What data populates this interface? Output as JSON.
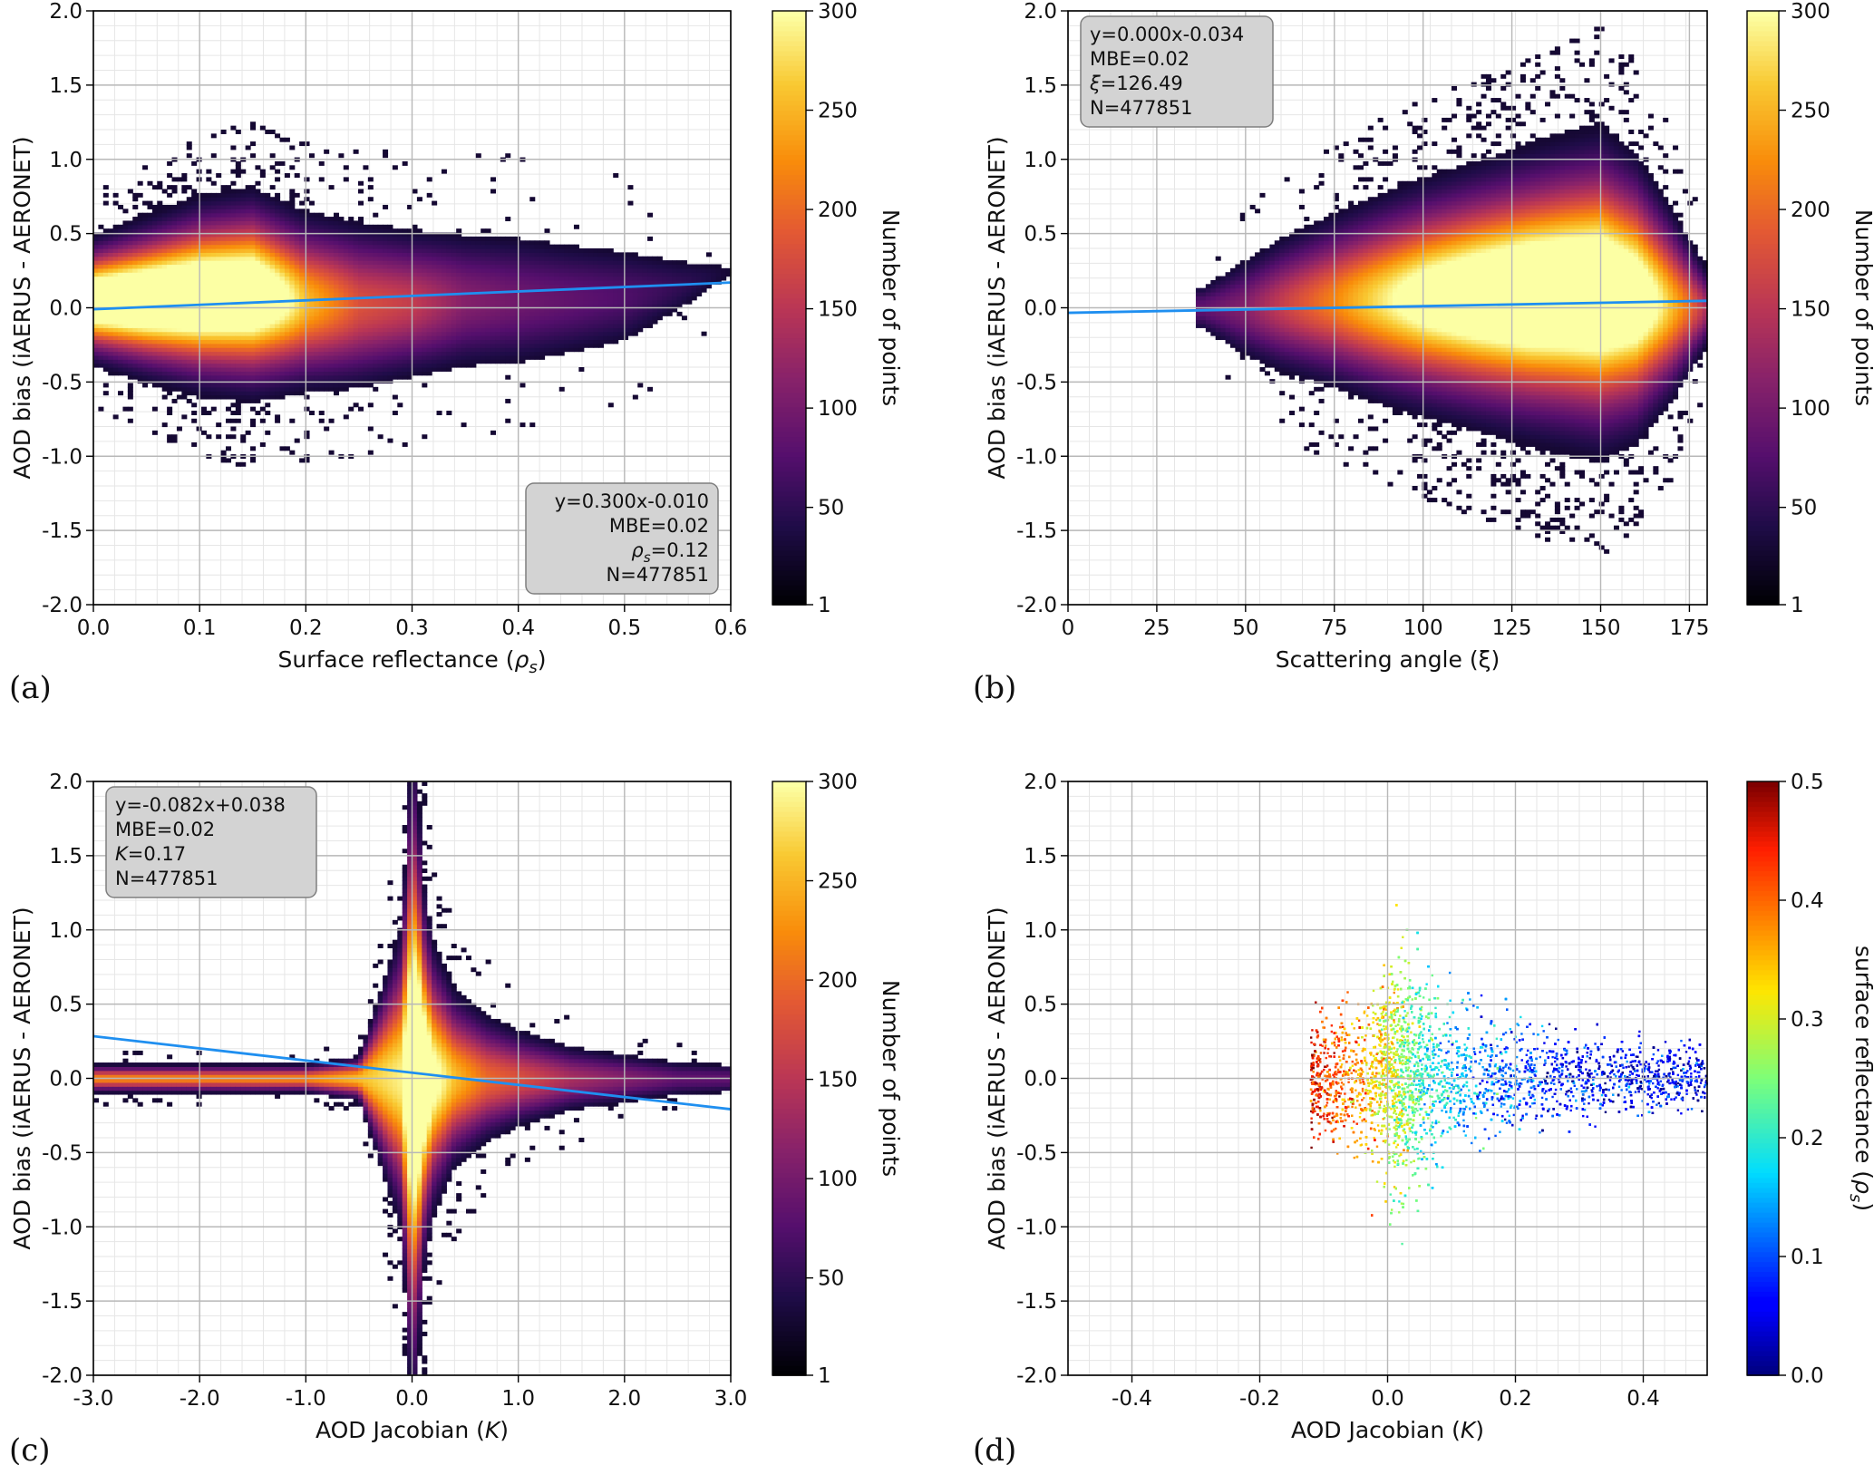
{
  "colors": {
    "fit_line": "#1f8ff0",
    "grid": "#b8b8b8",
    "info_box_fill": "#d3d3d3",
    "info_box_stroke": "#7f7f7f",
    "inferno_low": "#000004",
    "inferno_high": "#fcffa4",
    "jet_low": "#00007f",
    "jet_high": "#7f0000"
  },
  "chart_data": [
    {
      "id": "a",
      "panel_label": "(a)",
      "type": "heatmap",
      "xlabel": "Surface reflectance (ρs)",
      "ylabel": "AOD bias (iAERUS - AERONET)",
      "xlim": [
        0.0,
        0.6
      ],
      "ylim": [
        -2.0,
        2.0
      ],
      "xticks": [
        "0.0",
        "0.1",
        "0.2",
        "0.3",
        "0.4",
        "0.5",
        "0.6"
      ],
      "yticks": [
        "2.0",
        "1.5",
        "1.0",
        "0.5",
        "0.0",
        "-0.5",
        "-1.0",
        "-1.5",
        "-2.0"
      ],
      "grid": true,
      "colormap": "inferno",
      "colorbar": {
        "label": "Number of points",
        "min": 1,
        "max": 300,
        "ticks": [
          "300",
          "250",
          "200",
          "150",
          "100",
          "50",
          "1"
        ]
      },
      "fit": {
        "slope": 0.3,
        "intercept": -0.01
      },
      "info_box": {
        "position": "bottom-right",
        "lines": [
          "y=0.300x-0.010",
          "MBE=0.02",
          "ρs=0.12",
          "N=477851"
        ]
      },
      "density_profile": {
        "x": [
          0.0,
          0.05,
          0.1,
          0.15,
          0.2,
          0.25,
          0.3,
          0.35,
          0.4,
          0.45,
          0.5,
          0.55,
          0.6
        ],
        "center": [
          0.05,
          0.06,
          0.08,
          0.09,
          0.04,
          0.02,
          0.03,
          0.05,
          0.05,
          0.06,
          0.08,
          0.15,
          0.25
        ],
        "spread": [
          0.16,
          0.2,
          0.24,
          0.26,
          0.24,
          0.24,
          0.22,
          0.22,
          0.22,
          0.2,
          0.18,
          0.12,
          0.06
        ],
        "peak": [
          0.95,
          1.0,
          1.0,
          0.95,
          0.5,
          0.3,
          0.25,
          0.15,
          0.12,
          0.1,
          0.08,
          0.05,
          0.02
        ]
      }
    },
    {
      "id": "b",
      "panel_label": "(b)",
      "type": "heatmap",
      "xlabel": "Scattering angle (ξ)",
      "ylabel": "AOD bias (iAERUS - AERONET)",
      "xlim": [
        0,
        180
      ],
      "ylim": [
        -2.0,
        2.0
      ],
      "xticks": [
        "0",
        "25",
        "50",
        "75",
        "100",
        "125",
        "150",
        "175"
      ],
      "yticks": [
        "2.0",
        "1.5",
        "1.0",
        "0.5",
        "0.0",
        "-0.5",
        "-1.0",
        "-1.5",
        "-2.0"
      ],
      "grid": true,
      "colormap": "inferno",
      "colorbar": {
        "label": "Number of points",
        "min": 1,
        "max": 300,
        "ticks": [
          "300",
          "250",
          "200",
          "150",
          "100",
          "50",
          "1"
        ]
      },
      "fit": {
        "slope": 0.0,
        "intercept": -0.034,
        "display_slope": 0.00045
      },
      "info_box": {
        "position": "top-left",
        "lines": [
          "y=0.000x-0.034",
          "MBE=0.02",
          "ξ=126.49",
          "N=477851"
        ]
      },
      "density_profile": {
        "x": [
          38,
          50,
          60,
          75,
          90,
          100,
          115,
          130,
          140,
          150,
          160,
          170,
          180
        ],
        "center": [
          0.0,
          0.0,
          0.02,
          0.05,
          0.06,
          0.07,
          0.08,
          0.09,
          0.1,
          0.1,
          0.06,
          0.02,
          0.0
        ],
        "spread": [
          0.08,
          0.16,
          0.2,
          0.24,
          0.28,
          0.3,
          0.33,
          0.36,
          0.38,
          0.4,
          0.36,
          0.26,
          0.12
        ],
        "peak": [
          0.1,
          0.15,
          0.25,
          0.4,
          0.6,
          0.75,
          0.9,
          1.0,
          1.0,
          1.0,
          0.85,
          0.5,
          0.2
        ]
      }
    },
    {
      "id": "c",
      "panel_label": "(c)",
      "type": "heatmap",
      "xlabel": "AOD Jacobian (K)",
      "ylabel": "AOD bias (iAERUS - AERONET)",
      "xlim": [
        -3.0,
        3.0
      ],
      "ylim": [
        -2.0,
        2.0
      ],
      "xticks": [
        "-3.0",
        "-2.0",
        "-1.0",
        "0.0",
        "1.0",
        "2.0",
        "3.0"
      ],
      "yticks": [
        "2.0",
        "1.5",
        "1.0",
        "0.5",
        "0.0",
        "-0.5",
        "-1.0",
        "-1.5",
        "-2.0"
      ],
      "grid": true,
      "colormap": "inferno",
      "colorbar": {
        "label": "Number of points",
        "min": 1,
        "max": 300,
        "ticks": [
          "300",
          "250",
          "200",
          "150",
          "100",
          "50",
          "1"
        ]
      },
      "fit": {
        "slope": -0.082,
        "intercept": 0.038
      },
      "info_box": {
        "position": "top-left",
        "lines": [
          "y=-0.082x+0.038",
          "MBE=0.02",
          "K=0.17",
          "N=477851"
        ]
      },
      "density_profile": {
        "x": [
          -3.0,
          -2.0,
          -1.0,
          -0.5,
          -0.1,
          0.0,
          0.05,
          0.1,
          0.2,
          0.4,
          0.7,
          1.0,
          1.5,
          2.0,
          2.5,
          3.0
        ],
        "center": [
          0,
          0,
          0,
          0,
          0,
          0,
          0,
          0,
          0,
          0,
          0,
          0,
          0,
          0,
          0,
          0
        ],
        "spread": [
          0.04,
          0.04,
          0.04,
          0.06,
          0.4,
          0.85,
          0.75,
          0.5,
          0.35,
          0.24,
          0.18,
          0.14,
          0.1,
          0.08,
          0.06,
          0.05
        ],
        "peak": [
          0.4,
          0.4,
          0.4,
          0.5,
          0.6,
          1.0,
          1.0,
          0.95,
          0.7,
          0.5,
          0.35,
          0.3,
          0.2,
          0.15,
          0.1,
          0.1
        ]
      }
    },
    {
      "id": "d",
      "panel_label": "(d)",
      "type": "scatter",
      "xlabel": "AOD Jacobian (K)",
      "ylabel": "AOD bias (iAERUS - AERONET)",
      "xlim": [
        -0.5,
        0.5
      ],
      "ylim": [
        -2.0,
        2.0
      ],
      "xticks": [
        "-0.4",
        "-0.2",
        "0.0",
        "0.2",
        "0.4"
      ],
      "xtick_values": [
        -0.4,
        -0.2,
        0.0,
        0.2,
        0.4
      ],
      "yticks": [
        "2.0",
        "1.5",
        "1.0",
        "0.5",
        "0.0",
        "-0.5",
        "-1.0",
        "-1.5",
        "-2.0"
      ],
      "grid": true,
      "colormap": "jet",
      "colorbar": {
        "label": "surface reflectance (ρs)",
        "min": 0.0,
        "max": 0.5,
        "ticks": [
          "0.5",
          "0.4",
          "0.3",
          "0.2",
          "0.1",
          "0.0"
        ]
      },
      "point_count_drawn": 9000,
      "color_vs_x": {
        "x": [
          -0.12,
          -0.05,
          0.0,
          0.05,
          0.15,
          0.3,
          0.5
        ],
        "value": [
          0.45,
          0.38,
          0.3,
          0.22,
          0.12,
          0.07,
          0.05
        ]
      }
    }
  ]
}
